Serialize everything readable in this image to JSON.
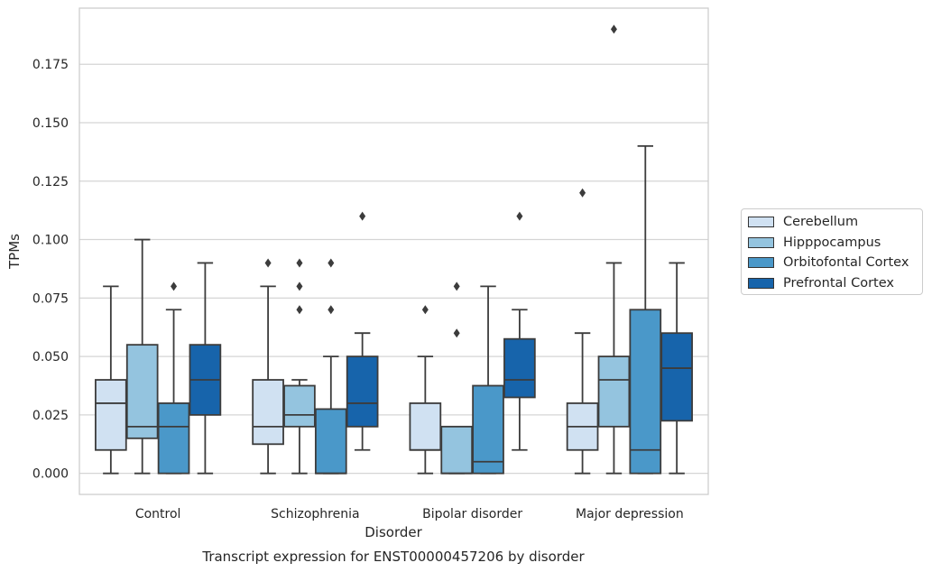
{
  "chart_data": {
    "type": "box",
    "title": "Transcript expression for ENST00000457206 by disorder",
    "xlabel": "Disorder",
    "ylabel": "TPMs",
    "ylim": [
      -0.009,
      0.199
    ],
    "yticks": [
      "0.000",
      "0.025",
      "0.050",
      "0.075",
      "0.100",
      "0.125",
      "0.150",
      "0.175"
    ],
    "categories": [
      "Control",
      "Schizophrenia",
      "Bipolar disorder",
      "Major depression"
    ],
    "grid": "horizontal",
    "legend_position": "right",
    "series": [
      {
        "name": "Cerebellum",
        "color": "#d0e1f2",
        "boxes": [
          {
            "q1": 0.01,
            "median": 0.03,
            "q3": 0.04,
            "whisker_low": 0.0,
            "whisker_high": 0.08,
            "outliers": []
          },
          {
            "q1": 0.0125,
            "median": 0.02,
            "q3": 0.04,
            "whisker_low": 0.0,
            "whisker_high": 0.08,
            "outliers": [
              0.09
            ]
          },
          {
            "q1": 0.01,
            "median": 0.01,
            "q3": 0.03,
            "whisker_low": 0.0,
            "whisker_high": 0.05,
            "outliers": [
              0.07
            ]
          },
          {
            "q1": 0.01,
            "median": 0.02,
            "q3": 0.03,
            "whisker_low": 0.0,
            "whisker_high": 0.06,
            "outliers": [
              0.12
            ]
          }
        ]
      },
      {
        "name": "Hipppocampus",
        "color": "#94c4df",
        "boxes": [
          {
            "q1": 0.015,
            "median": 0.02,
            "q3": 0.055,
            "whisker_low": 0.0,
            "whisker_high": 0.1,
            "outliers": []
          },
          {
            "q1": 0.02,
            "median": 0.025,
            "q3": 0.0375,
            "whisker_low": 0.0,
            "whisker_high": 0.04,
            "outliers": [
              0.07,
              0.08,
              0.09
            ]
          },
          {
            "q1": 0.0,
            "median": 0.0,
            "q3": 0.02,
            "whisker_low": 0.0,
            "whisker_high": 0.02,
            "outliers": [
              0.06,
              0.08
            ]
          },
          {
            "q1": 0.02,
            "median": 0.04,
            "q3": 0.05,
            "whisker_low": 0.0,
            "whisker_high": 0.09,
            "outliers": [
              0.19
            ]
          }
        ]
      },
      {
        "name": "Orbitofontal Cortex",
        "color": "#4a98c9",
        "boxes": [
          {
            "q1": 0.0,
            "median": 0.02,
            "q3": 0.03,
            "whisker_low": 0.0,
            "whisker_high": 0.07,
            "outliers": [
              0.08
            ]
          },
          {
            "q1": 0.0,
            "median": 0.0,
            "q3": 0.0275,
            "whisker_low": 0.0,
            "whisker_high": 0.05,
            "outliers": [
              0.07,
              0.09
            ]
          },
          {
            "q1": 0.0,
            "median": 0.005,
            "q3": 0.0375,
            "whisker_low": 0.0,
            "whisker_high": 0.08,
            "outliers": []
          },
          {
            "q1": 0.0,
            "median": 0.01,
            "q3": 0.07,
            "whisker_low": 0.0,
            "whisker_high": 0.14,
            "outliers": []
          }
        ]
      },
      {
        "name": "Prefrontal Cortex",
        "color": "#1764ab",
        "boxes": [
          {
            "q1": 0.025,
            "median": 0.04,
            "q3": 0.055,
            "whisker_low": 0.0,
            "whisker_high": 0.09,
            "outliers": []
          },
          {
            "q1": 0.02,
            "median": 0.03,
            "q3": 0.05,
            "whisker_low": 0.01,
            "whisker_high": 0.06,
            "outliers": [
              0.11
            ]
          },
          {
            "q1": 0.0325,
            "median": 0.04,
            "q3": 0.0575,
            "whisker_low": 0.01,
            "whisker_high": 0.07,
            "outliers": [
              0.11
            ]
          },
          {
            "q1": 0.0225,
            "median": 0.045,
            "q3": 0.06,
            "whisker_low": 0.0,
            "whisker_high": 0.09,
            "outliers": []
          }
        ]
      }
    ]
  }
}
